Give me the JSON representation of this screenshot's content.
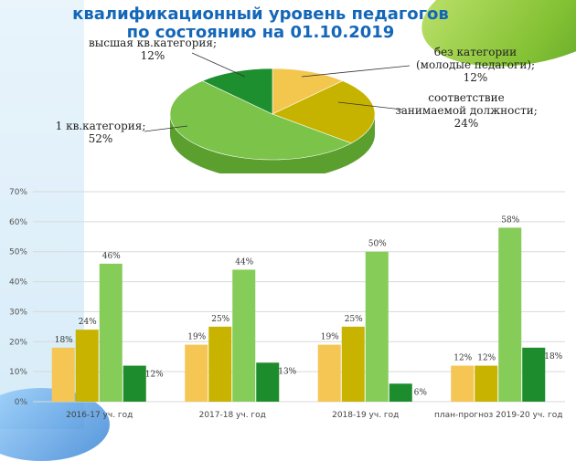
{
  "header": {
    "title_line1": "квалификационный уровень педагогов",
    "title_line2": "по состоянию на 01.10.2019"
  },
  "chart_data": [
    {
      "type": "pie",
      "slices": [
        {
          "label": "без категории\n(молодые педагоги);\n12%",
          "value": 12,
          "color": "#f3c74e"
        },
        {
          "label": "соответствие\nзанимаемой должности;\n24%",
          "value": 24,
          "color": "#c6b300"
        },
        {
          "label": "1 кв.категория;\n52%",
          "value": 52,
          "color": "#7cc34a"
        },
        {
          "label": "высшая кв.категория;\n12%",
          "value": 12,
          "color": "#1e8f2f"
        }
      ]
    },
    {
      "type": "bar",
      "categories": [
        "2016-17 уч. год",
        "2017-18 уч. год",
        "2018-19 уч. год",
        "план-прогноз 2019-20 уч. год"
      ],
      "series": [
        {
          "values": [
            18,
            19,
            19,
            12
          ],
          "labels": [
            "18%",
            "19%",
            "19%",
            "12%"
          ],
          "color": "#f6c655"
        },
        {
          "values": [
            24,
            25,
            25,
            12
          ],
          "labels": [
            "24%",
            "25%",
            "25%",
            "12%"
          ],
          "color": "#c7b300"
        },
        {
          "values": [
            46,
            44,
            50,
            58
          ],
          "labels": [
            "46%",
            "44%",
            "50%",
            "58%"
          ],
          "color": "#86cc58"
        },
        {
          "values": [
            12,
            13,
            6,
            18
          ],
          "labels": [
            "12%",
            "13%",
            "6%",
            "18%"
          ],
          "color": "#1c8c2d"
        }
      ],
      "yticks": [
        "0%",
        "10%",
        "20%",
        "30%",
        "40%",
        "50%",
        "60%",
        "70%"
      ],
      "ylim": [
        0,
        70
      ],
      "grid": true
    }
  ]
}
